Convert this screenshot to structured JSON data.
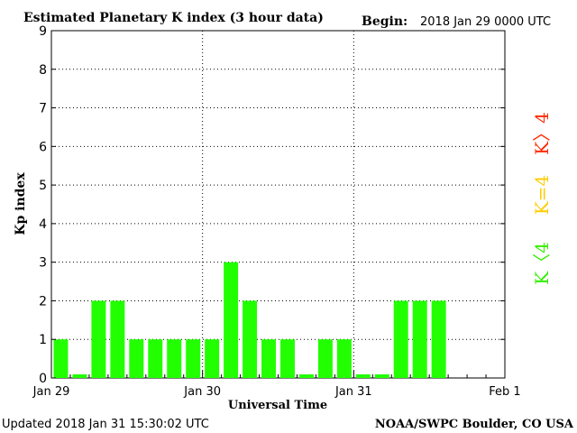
{
  "header": {
    "title": "Estimated Planetary K index (3 hour data)",
    "begin_label": "Begin:",
    "begin_value": "2018 Jan 29 0000 UTC"
  },
  "footer": {
    "updated": "Updated 2018 Jan 31 15:30:02 UTC",
    "credit": "NOAA/SWPC Boulder, CO USA"
  },
  "legend": {
    "red": "K〉4",
    "yellow": "K=4",
    "green": "K〈4"
  },
  "colors": {
    "bar": "#22ff00",
    "legend_red": "#ff2a00",
    "legend_yellow": "#ffcc00",
    "legend_green": "#33ee00",
    "axis": "#000000",
    "grid": "#000000",
    "background": "#ffffff"
  },
  "chart_data": {
    "type": "bar",
    "title": "Estimated Planetary K index (3 hour data)",
    "xlabel": "Universal Time",
    "ylabel": "Kp index",
    "ylim": [
      0,
      9
    ],
    "yticks": [
      "0",
      "1",
      "2",
      "3",
      "4",
      "5",
      "6",
      "7",
      "8",
      "9"
    ],
    "xtick_labels": [
      "Jan 29",
      "Jan 30",
      "Jan 31",
      "Feb 1"
    ],
    "interval_hours": 3,
    "grid": true,
    "legend_position": "right",
    "values": [
      1,
      0,
      2,
      2,
      1,
      1,
      1,
      1,
      1,
      3,
      2,
      1,
      1,
      0,
      1,
      1,
      0,
      0,
      2,
      2,
      2
    ]
  }
}
